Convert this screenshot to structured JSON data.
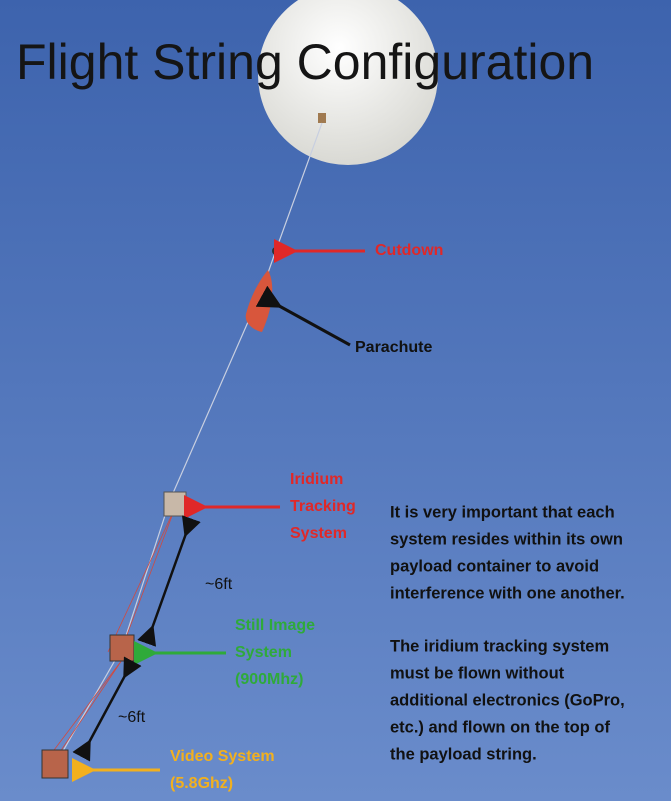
{
  "title": "Flight String Configuration",
  "callouts": {
    "cutdown": [
      "Cutdown"
    ],
    "parachute": [
      "Parachute"
    ],
    "iridium": [
      "Iridium",
      "Tracking",
      "System"
    ],
    "still_image": [
      "Still Image",
      "System",
      "(900Mhz)"
    ],
    "video": [
      "Video System",
      "(5.8Ghz)"
    ]
  },
  "spacing": [
    "~6ft",
    "~6ft"
  ],
  "notes": [
    [
      "It is very important that each",
      "system resides within its own",
      "payload container to avoid",
      "interference with one another."
    ],
    [
      "The iridium tracking system",
      "must be flown without",
      "additional electronics (GoPro,",
      "etc.) and flown on the top of",
      "the payload string."
    ]
  ]
}
